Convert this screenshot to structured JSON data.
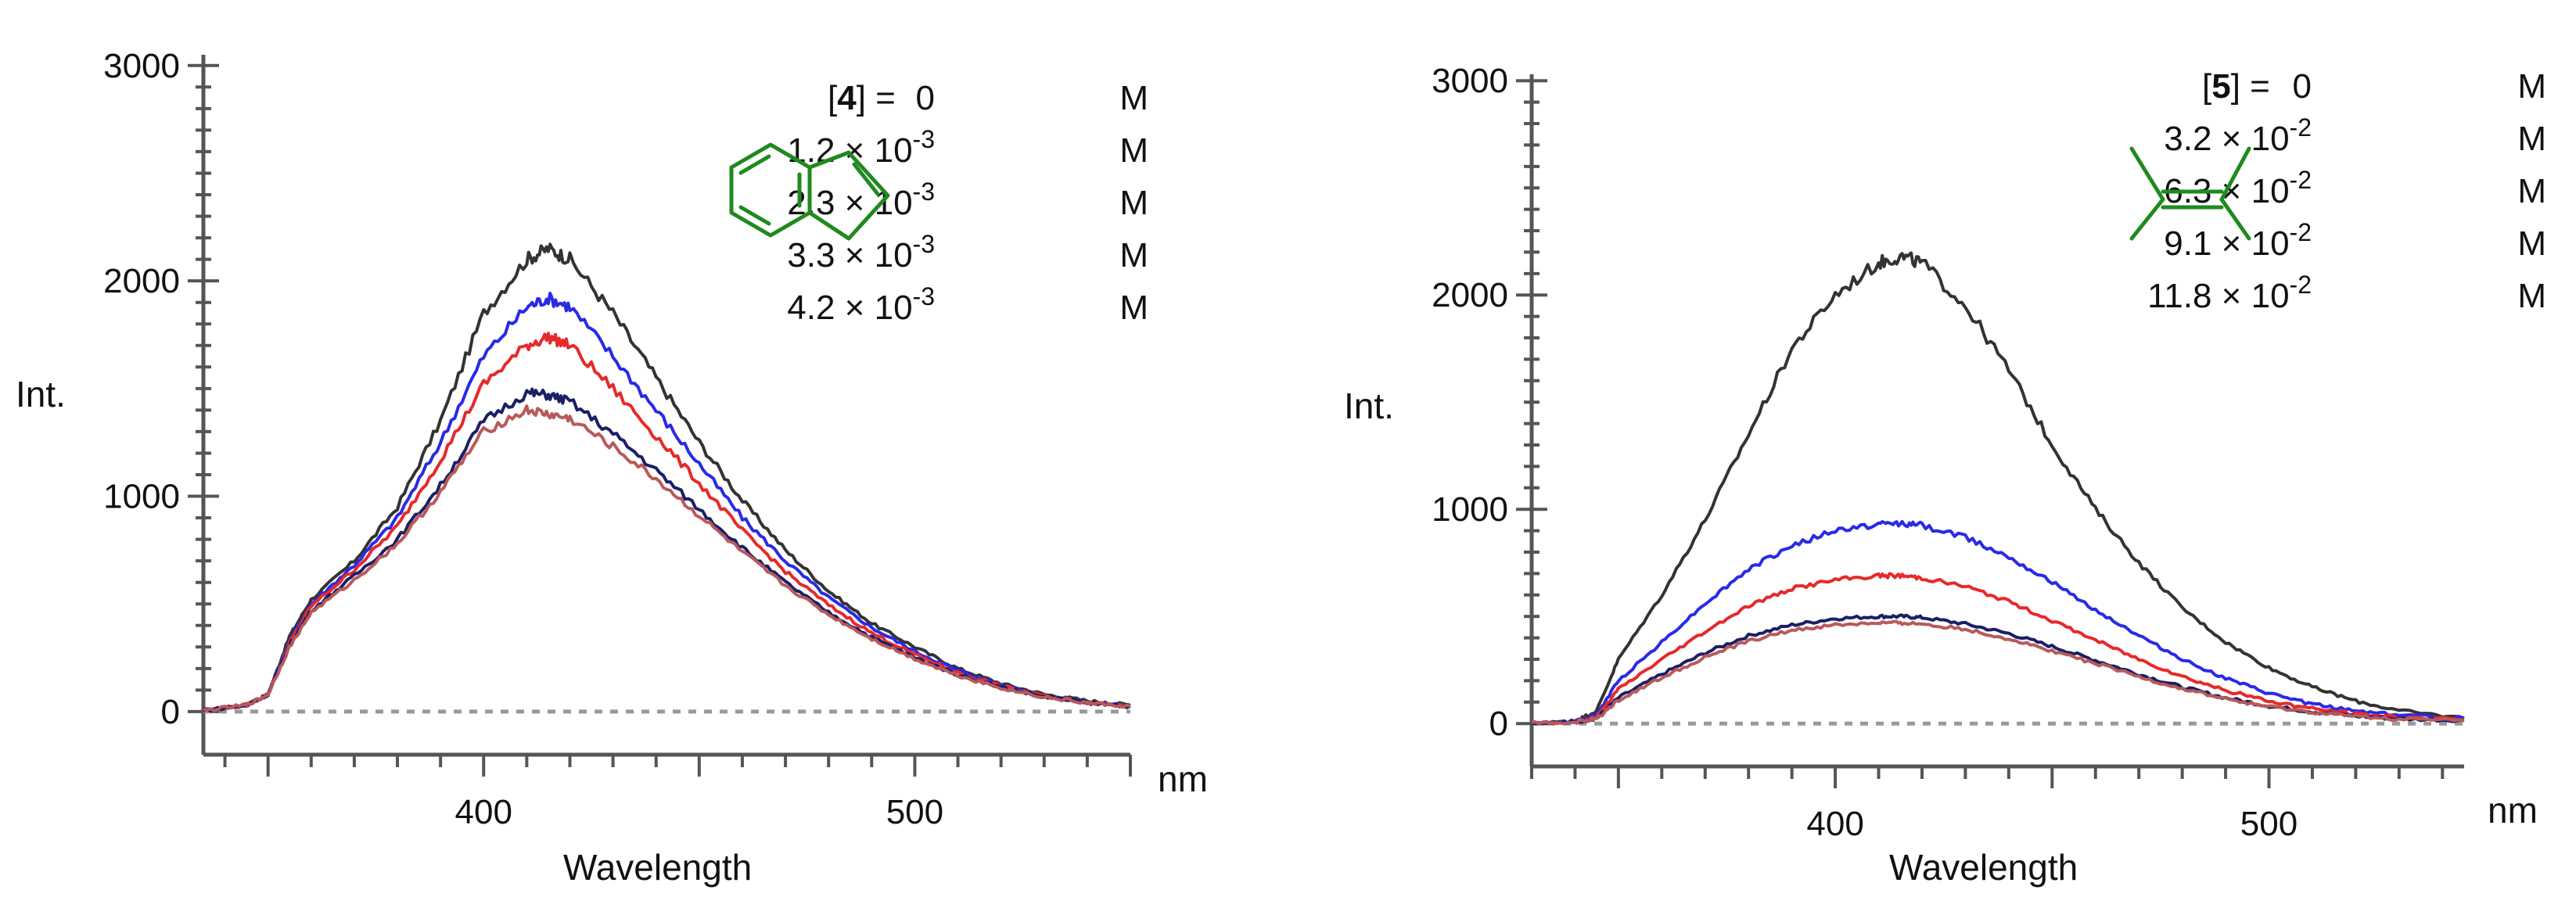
{
  "colors": {
    "black": "#333333",
    "blue": "#2a2ae6",
    "red": "#e62a2a",
    "navy": "#1a1f66",
    "rose": "#b85a5a",
    "molecule": "#1f8a1f"
  },
  "chart_data": [
    {
      "type": "line",
      "title": "",
      "xlabel": "Wavelength",
      "ylabel": "Int.",
      "x_unit": "nm",
      "xlim": [
        335,
        550
      ],
      "ylim": [
        -200,
        3050
      ],
      "x_ticks": [
        400,
        500
      ],
      "y_ticks": [
        0,
        1000,
        2000,
        3000
      ],
      "x_tick_labels": [
        "400",
        "500"
      ],
      "y_tick_labels": [
        "0",
        "1000",
        "2000",
        "3000"
      ],
      "quencher_label": "4",
      "legend_prefix": "[",
      "legend_suffix": "] =",
      "legend_entries": [
        {
          "mant": "0",
          "exp": "",
          "unit": "M"
        },
        {
          "mant": "1.2 × 10",
          "exp": "-3",
          "unit": "M"
        },
        {
          "mant": "2.3 × 10",
          "exp": "-3",
          "unit": "M"
        },
        {
          "mant": "3.3 × 10",
          "exp": "-3",
          "unit": "M"
        },
        {
          "mant": "4.2 × 10",
          "exp": "-3",
          "unit": "M"
        }
      ],
      "molecule": "indene",
      "x": [
        335,
        345,
        350,
        355,
        360,
        370,
        380,
        390,
        400,
        410,
        415,
        420,
        430,
        440,
        450,
        460,
        470,
        480,
        490,
        500,
        510,
        520,
        530,
        540,
        550
      ],
      "series": [
        {
          "name": "0 M",
          "color": "#333333",
          "values": [
            5,
            30,
            80,
            350,
            520,
            700,
            950,
            1350,
            1850,
            2100,
            2150,
            2100,
            1850,
            1550,
            1250,
            980,
            750,
            560,
            410,
            300,
            200,
            130,
            80,
            50,
            30
          ]
        },
        {
          "name": "1.2 × 10-3 M",
          "color": "#2a2ae6",
          "values": [
            5,
            30,
            80,
            330,
            500,
            680,
            900,
            1250,
            1650,
            1880,
            1920,
            1880,
            1650,
            1400,
            1150,
            900,
            700,
            530,
            390,
            280,
            190,
            125,
            75,
            45,
            28
          ]
        },
        {
          "name": "2.3 × 10-3 M",
          "color": "#e62a2a",
          "values": [
            5,
            30,
            80,
            320,
            490,
            660,
            860,
            1170,
            1520,
            1700,
            1740,
            1700,
            1500,
            1280,
            1060,
            840,
            650,
            495,
            365,
            265,
            180,
            118,
            72,
            43,
            26
          ]
        },
        {
          "name": "3.3 × 10-3 M",
          "color": "#1a1f66",
          "values": [
            5,
            30,
            80,
            310,
            470,
            630,
            800,
            1050,
            1350,
            1480,
            1470,
            1440,
            1290,
            1120,
            940,
            760,
            600,
            460,
            345,
            250,
            172,
            113,
            69,
            41,
            25
          ]
        },
        {
          "name": "4.2 × 10-3 M",
          "color": "#b85a5a",
          "values": [
            5,
            30,
            80,
            300,
            460,
            610,
            780,
            1020,
            1300,
            1400,
            1380,
            1360,
            1230,
            1080,
            910,
            740,
            585,
            450,
            338,
            245,
            168,
            110,
            67,
            40,
            24
          ]
        }
      ]
    },
    {
      "type": "line",
      "title": "",
      "xlabel": "Wavelength",
      "ylabel": "Int.",
      "x_unit": "nm",
      "xlim": [
        330,
        545
      ],
      "ylim": [
        -200,
        3030
      ],
      "x_ticks": [
        400,
        500
      ],
      "y_ticks": [
        0,
        1000,
        2000,
        3000
      ],
      "x_tick_labels": [
        "400",
        "500"
      ],
      "y_tick_labels": [
        "0",
        "1000",
        "2000",
        "3000"
      ],
      "quencher_label": "5",
      "legend_prefix": "[",
      "legend_suffix": "] =",
      "legend_entries": [
        {
          "mant": "0",
          "exp": "",
          "unit": "M"
        },
        {
          "mant": "3.2 × 10",
          "exp": "-2",
          "unit": "M"
        },
        {
          "mant": "6.3 × 10",
          "exp": "-2",
          "unit": "M"
        },
        {
          "mant": "9.1 × 10",
          "exp": "-2",
          "unit": "M"
        },
        {
          "mant": "11.8 × 10",
          "exp": "-2",
          "unit": "M"
        }
      ],
      "molecule": "tetramethylethylene",
      "x": [
        330,
        340,
        345,
        350,
        360,
        370,
        380,
        390,
        400,
        410,
        415,
        420,
        430,
        440,
        450,
        460,
        470,
        480,
        490,
        500,
        510,
        520,
        530,
        545
      ],
      "series": [
        {
          "name": "0 M",
          "color": "#333333",
          "values": [
            0,
            10,
            60,
            300,
            600,
            950,
            1350,
            1750,
            2000,
            2150,
            2180,
            2150,
            1950,
            1650,
            1300,
            1000,
            750,
            540,
            380,
            260,
            170,
            105,
            60,
            25
          ]
        },
        {
          "name": "3.2 × 10-2 M",
          "color": "#2a2ae6",
          "values": [
            0,
            10,
            40,
            200,
            380,
            560,
            720,
            830,
            900,
            930,
            935,
            925,
            870,
            780,
            660,
            530,
            410,
            300,
            210,
            140,
            90,
            60,
            40,
            25
          ]
        },
        {
          "name": "6.3 × 10-2 M",
          "color": "#e62a2a",
          "values": [
            0,
            8,
            30,
            160,
            300,
            430,
            550,
            630,
            670,
            690,
            690,
            680,
            640,
            570,
            480,
            390,
            300,
            220,
            155,
            105,
            70,
            45,
            30,
            20
          ]
        },
        {
          "name": "9.1 × 10-2 M",
          "color": "#1a1f66",
          "values": [
            0,
            6,
            25,
            120,
            230,
            330,
            410,
            460,
            490,
            500,
            500,
            495,
            465,
            420,
            360,
            295,
            230,
            170,
            120,
            82,
            55,
            35,
            22,
            15
          ]
        },
        {
          "name": "11.8 × 10-2 M",
          "color": "#b85a5a",
          "values": [
            0,
            6,
            22,
            110,
            215,
            310,
            385,
            435,
            460,
            470,
            470,
            465,
            440,
            395,
            340,
            280,
            218,
            162,
            115,
            78,
            52,
            33,
            21,
            14
          ]
        }
      ]
    }
  ]
}
